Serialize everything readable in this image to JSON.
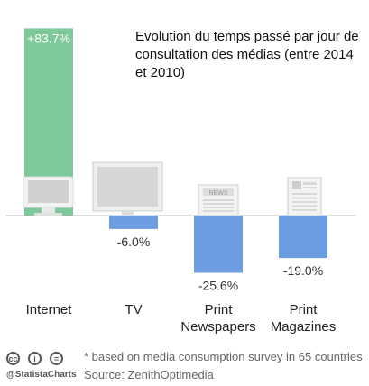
{
  "chart_data": {
    "type": "bar",
    "title": "Evolution du temps passé par jour de consultation des médias (entre 2014 et 2010)",
    "categories": [
      "Internet",
      "TV",
      "Print\nNewspapers",
      "Print\nMagazines"
    ],
    "values": [
      83.7,
      -6.0,
      -25.6,
      -19.0
    ],
    "value_labels": [
      "+83.7%",
      "-6.0%",
      "-25.6%",
      "-19.0%"
    ],
    "colors": {
      "positive": "#7ec99a",
      "negative": "#6c9de0"
    },
    "icons": [
      "computer-monitor-icon",
      "television-icon",
      "newspaper-icon",
      "magazine-icon"
    ],
    "grid": false,
    "legend": "none"
  },
  "footer": {
    "license_icons": [
      "cc",
      "i",
      "="
    ],
    "handle": "@StatistaCharts",
    "note": "* based on media consumption survey in 65 countries",
    "source": "Source: ZenithOptimedia"
  }
}
